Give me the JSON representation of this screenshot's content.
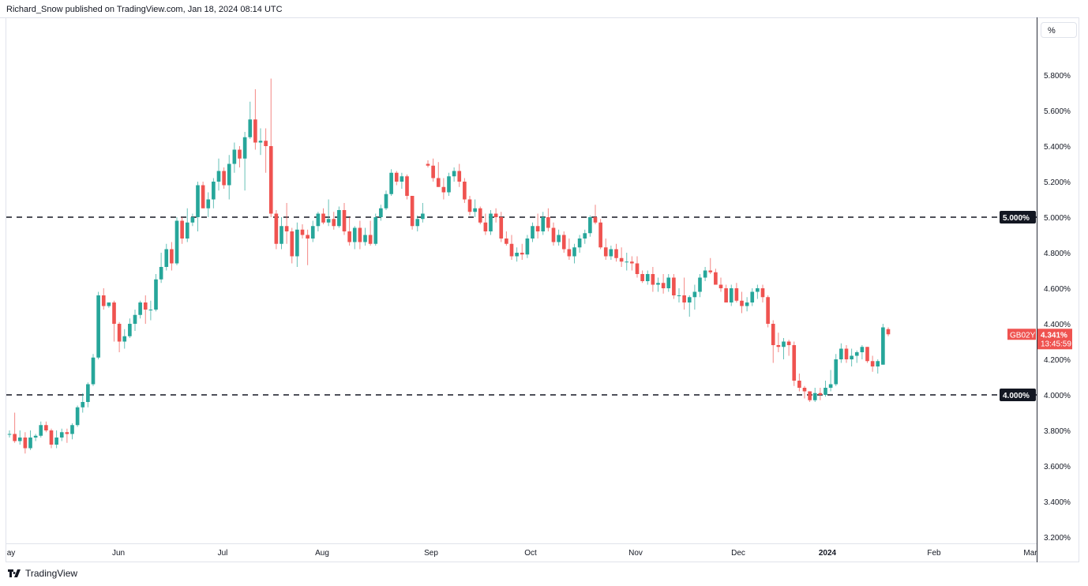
{
  "header": {
    "attribution": "Richard_Snow published on TradingView.com, Jan 18, 2024 08:14 UTC"
  },
  "footer": {
    "brand": "TradingView"
  },
  "axis": {
    "unit_button": "%"
  },
  "colors": {
    "up": "#26a69a",
    "down": "#ef5350",
    "level_line": "#131722"
  },
  "chart_data": {
    "type": "candlestick",
    "symbol": "GB02Y",
    "ylim": [
      3.2,
      6.0
    ],
    "y_ticks": [
      "3.200%",
      "3.400%",
      "3.600%",
      "3.800%",
      "4.000%",
      "4.200%",
      "4.400%",
      "4.600%",
      "4.800%",
      "5.000%",
      "5.200%",
      "5.400%",
      "5.600%",
      "5.800%"
    ],
    "x_ticks": [
      "ay",
      "Jun",
      "Jul",
      "Aug",
      "Sep",
      "Oct",
      "Nov",
      "Dec",
      "2024",
      "Feb",
      "Mar"
    ],
    "horizontal_levels": [
      {
        "value": 5.0,
        "label": "5.000%"
      },
      {
        "value": 4.0,
        "label": "4.000%"
      }
    ],
    "last_price": {
      "value": 4.341,
      "label": "4.341%",
      "countdown": "13:45:59"
    },
    "grid": false,
    "ohlc": [
      [
        3.78,
        3.8,
        3.76,
        3.78
      ],
      [
        3.78,
        3.9,
        3.73,
        3.74
      ],
      [
        3.74,
        3.8,
        3.72,
        3.76
      ],
      [
        3.76,
        3.79,
        3.67,
        3.7
      ],
      [
        3.7,
        3.8,
        3.69,
        3.76
      ],
      [
        3.76,
        3.78,
        3.74,
        3.77
      ],
      [
        3.77,
        3.85,
        3.76,
        3.83
      ],
      [
        3.83,
        3.85,
        3.79,
        3.8
      ],
      [
        3.8,
        3.81,
        3.7,
        3.72
      ],
      [
        3.72,
        3.8,
        3.7,
        3.76
      ],
      [
        3.76,
        3.81,
        3.74,
        3.79
      ],
      [
        3.79,
        3.81,
        3.73,
        3.78
      ],
      [
        3.78,
        3.84,
        3.75,
        3.83
      ],
      [
        3.83,
        3.94,
        3.82,
        3.93
      ],
      [
        3.93,
        4.01,
        3.9,
        3.96
      ],
      [
        3.96,
        4.07,
        3.93,
        4.06
      ],
      [
        4.06,
        4.23,
        4.05,
        4.21
      ],
      [
        4.21,
        4.58,
        4.2,
        4.56
      ],
      [
        4.56,
        4.6,
        4.48,
        4.5
      ],
      [
        4.5,
        4.52,
        4.49,
        4.52
      ],
      [
        4.52,
        4.53,
        4.3,
        4.4
      ],
      [
        4.4,
        4.41,
        4.24,
        4.3
      ],
      [
        4.3,
        4.37,
        4.26,
        4.33
      ],
      [
        4.33,
        4.43,
        4.32,
        4.4
      ],
      [
        4.4,
        4.48,
        4.36,
        4.45
      ],
      [
        4.45,
        4.53,
        4.43,
        4.52
      ],
      [
        4.52,
        4.56,
        4.4,
        4.48
      ],
      [
        4.48,
        4.53,
        4.42,
        4.48
      ],
      [
        4.48,
        4.68,
        4.47,
        4.65
      ],
      [
        4.65,
        4.8,
        4.63,
        4.72
      ],
      [
        4.72,
        4.85,
        4.7,
        4.82
      ],
      [
        4.82,
        4.86,
        4.7,
        4.74
      ],
      [
        4.74,
        5.0,
        4.73,
        4.98
      ],
      [
        4.98,
        5.0,
        4.85,
        4.88
      ],
      [
        4.88,
        5.05,
        4.86,
        4.97
      ],
      [
        4.97,
        5.02,
        4.95,
        5.0
      ],
      [
        5.0,
        5.2,
        4.92,
        5.18
      ],
      [
        5.18,
        5.2,
        5.05,
        5.05
      ],
      [
        5.05,
        5.14,
        5.0,
        5.1
      ],
      [
        5.1,
        5.22,
        5.05,
        5.2
      ],
      [
        5.2,
        5.33,
        5.15,
        5.26
      ],
      [
        5.26,
        5.28,
        5.16,
        5.18
      ],
      [
        5.18,
        5.35,
        5.1,
        5.3
      ],
      [
        5.3,
        5.42,
        5.25,
        5.38
      ],
      [
        5.38,
        5.4,
        5.28,
        5.33
      ],
      [
        5.33,
        5.48,
        5.15,
        5.45
      ],
      [
        5.45,
        5.65,
        5.44,
        5.55
      ],
      [
        5.55,
        5.72,
        5.38,
        5.42
      ],
      [
        5.42,
        5.5,
        5.35,
        5.43
      ],
      [
        5.43,
        5.5,
        5.25,
        5.4
      ],
      [
        5.4,
        5.78,
        5.0,
        5.02
      ],
      [
        5.02,
        5.04,
        4.82,
        4.85
      ],
      [
        4.85,
        5.0,
        4.82,
        4.95
      ],
      [
        4.95,
        5.08,
        4.85,
        4.92
      ],
      [
        4.92,
        4.94,
        4.74,
        4.78
      ],
      [
        4.78,
        4.97,
        4.72,
        4.93
      ],
      [
        4.93,
        4.96,
        4.88,
        4.9
      ],
      [
        4.9,
        4.93,
        4.73,
        4.88
      ],
      [
        4.88,
        4.98,
        4.86,
        4.95
      ],
      [
        4.95,
        5.03,
        4.92,
        5.02
      ],
      [
        5.02,
        5.05,
        4.96,
        4.97
      ],
      [
        4.97,
        5.1,
        4.95,
        4.99
      ],
      [
        4.99,
        5.03,
        4.93,
        4.95
      ],
      [
        4.95,
        5.06,
        4.94,
        5.04
      ],
      [
        5.04,
        5.08,
        4.9,
        4.92
      ],
      [
        4.92,
        5.0,
        4.84,
        4.86
      ],
      [
        4.86,
        4.95,
        4.82,
        4.94
      ],
      [
        4.94,
        4.98,
        4.82,
        4.86
      ],
      [
        4.86,
        4.94,
        4.84,
        4.9
      ],
      [
        4.9,
        4.98,
        4.84,
        4.85
      ],
      [
        4.85,
        5.02,
        4.84,
        5.0
      ],
      [
        5.0,
        5.07,
        4.98,
        5.05
      ],
      [
        5.05,
        5.15,
        5.04,
        5.13
      ],
      [
        5.13,
        5.27,
        5.12,
        5.25
      ],
      [
        5.25,
        5.26,
        5.18,
        5.2
      ],
      [
        5.2,
        5.25,
        5.16,
        5.23
      ],
      [
        5.23,
        5.24,
        5.1,
        5.12
      ],
      [
        5.12,
        5.12,
        4.93,
        4.95
      ],
      [
        4.95,
        5.01,
        4.92,
        4.99
      ],
      [
        4.99,
        5.08,
        4.97,
        5.02
      ],
      [
        5.3,
        5.32,
        5.28,
        5.29
      ],
      [
        5.29,
        5.33,
        5.2,
        5.22
      ],
      [
        5.22,
        5.31,
        5.17,
        5.17
      ],
      [
        5.17,
        5.22,
        5.1,
        5.14
      ],
      [
        5.14,
        5.25,
        5.12,
        5.23
      ],
      [
        5.23,
        5.28,
        5.2,
        5.26
      ],
      [
        5.26,
        5.3,
        5.17,
        5.2
      ],
      [
        5.2,
        5.22,
        5.08,
        5.1
      ],
      [
        5.1,
        5.12,
        5.01,
        5.03
      ],
      [
        5.03,
        5.1,
        5.0,
        5.05
      ],
      [
        5.05,
        5.06,
        4.96,
        4.97
      ],
      [
        4.97,
        5.02,
        4.9,
        4.92
      ],
      [
        4.92,
        5.04,
        4.9,
        5.02
      ],
      [
        5.02,
        5.05,
        4.97,
        5.0
      ],
      [
        5.0,
        5.03,
        4.86,
        4.88
      ],
      [
        4.88,
        4.92,
        4.84,
        4.85
      ],
      [
        4.85,
        4.9,
        4.76,
        4.78
      ],
      [
        4.78,
        4.83,
        4.75,
        4.8
      ],
      [
        4.8,
        4.85,
        4.76,
        4.79
      ],
      [
        4.79,
        4.9,
        4.77,
        4.88
      ],
      [
        4.88,
        4.97,
        4.86,
        4.95
      ],
      [
        4.95,
        5.02,
        4.88,
        4.92
      ],
      [
        4.92,
        5.03,
        4.9,
        5.0
      ],
      [
        5.0,
        5.05,
        4.92,
        4.94
      ],
      [
        4.94,
        4.97,
        4.84,
        4.86
      ],
      [
        4.86,
        4.93,
        4.84,
        4.9
      ],
      [
        4.9,
        4.92,
        4.8,
        4.82
      ],
      [
        4.82,
        4.88,
        4.76,
        4.78
      ],
      [
        4.78,
        4.85,
        4.74,
        4.83
      ],
      [
        4.83,
        4.9,
        4.8,
        4.88
      ],
      [
        4.88,
        4.93,
        4.85,
        4.91
      ],
      [
        4.91,
        5.01,
        4.89,
        5.0
      ],
      [
        5.0,
        5.07,
        4.96,
        4.97
      ],
      [
        4.97,
        4.99,
        4.82,
        4.83
      ],
      [
        4.83,
        4.88,
        4.76,
        4.78
      ],
      [
        4.78,
        4.84,
        4.76,
        4.82
      ],
      [
        4.82,
        4.85,
        4.75,
        4.77
      ],
      [
        4.77,
        4.83,
        4.72,
        4.75
      ],
      [
        4.75,
        4.8,
        4.7,
        4.75
      ],
      [
        4.75,
        4.78,
        4.7,
        4.74
      ],
      [
        4.74,
        4.78,
        4.66,
        4.68
      ],
      [
        4.68,
        4.7,
        4.63,
        4.64
      ],
      [
        4.64,
        4.7,
        4.62,
        4.68
      ],
      [
        4.68,
        4.72,
        4.58,
        4.62
      ],
      [
        4.62,
        4.66,
        4.58,
        4.63
      ],
      [
        4.63,
        4.68,
        4.57,
        4.6
      ],
      [
        4.6,
        4.68,
        4.58,
        4.66
      ],
      [
        4.66,
        4.68,
        4.54,
        4.56
      ],
      [
        4.56,
        4.6,
        4.52,
        4.56
      ],
      [
        4.56,
        4.66,
        4.48,
        4.52
      ],
      [
        4.52,
        4.56,
        4.44,
        4.55
      ],
      [
        4.55,
        4.62,
        4.48,
        4.58
      ],
      [
        4.58,
        4.68,
        4.55,
        4.66
      ],
      [
        4.66,
        4.72,
        4.64,
        4.7
      ],
      [
        4.7,
        4.77,
        4.68,
        4.69
      ],
      [
        4.69,
        4.71,
        4.62,
        4.62
      ],
      [
        4.62,
        4.66,
        4.58,
        4.6
      ],
      [
        4.6,
        4.62,
        4.52,
        4.52
      ],
      [
        4.52,
        4.62,
        4.5,
        4.6
      ],
      [
        4.6,
        4.63,
        4.52,
        4.53
      ],
      [
        4.53,
        4.58,
        4.46,
        4.5
      ],
      [
        4.5,
        4.55,
        4.47,
        4.52
      ],
      [
        4.52,
        4.6,
        4.5,
        4.58
      ],
      [
        4.58,
        4.62,
        4.54,
        4.6
      ],
      [
        4.6,
        4.62,
        4.52,
        4.55
      ],
      [
        4.55,
        4.56,
        4.38,
        4.4
      ],
      [
        4.4,
        4.42,
        4.18,
        4.28
      ],
      [
        4.28,
        4.35,
        4.24,
        4.27
      ],
      [
        4.27,
        4.32,
        4.2,
        4.3
      ],
      [
        4.3,
        4.31,
        4.22,
        4.28
      ],
      [
        4.28,
        4.3,
        4.05,
        4.08
      ],
      [
        4.08,
        4.12,
        4.02,
        4.04
      ],
      [
        4.04,
        4.05,
        3.98,
        4.02
      ],
      [
        4.02,
        4.02,
        3.96,
        3.97
      ],
      [
        3.97,
        4.04,
        3.96,
        4.01
      ],
      [
        4.01,
        4.04,
        3.97,
        4.0
      ],
      [
        4.0,
        4.08,
        3.99,
        4.04
      ],
      [
        4.04,
        4.14,
        4.02,
        4.06
      ],
      [
        4.06,
        4.23,
        4.05,
        4.2
      ],
      [
        4.2,
        4.29,
        4.18,
        4.26
      ],
      [
        4.26,
        4.28,
        4.18,
        4.2
      ],
      [
        4.2,
        4.26,
        4.16,
        4.22
      ],
      [
        4.22,
        4.25,
        4.18,
        4.24
      ],
      [
        4.24,
        4.28,
        4.2,
        4.27
      ],
      [
        4.27,
        4.27,
        4.18,
        4.19
      ],
      [
        4.19,
        4.22,
        4.13,
        4.16
      ],
      [
        4.16,
        4.2,
        4.12,
        4.19
      ],
      [
        4.17,
        4.4,
        4.17,
        4.38
      ],
      [
        4.37,
        4.38,
        4.33,
        4.341
      ]
    ]
  }
}
